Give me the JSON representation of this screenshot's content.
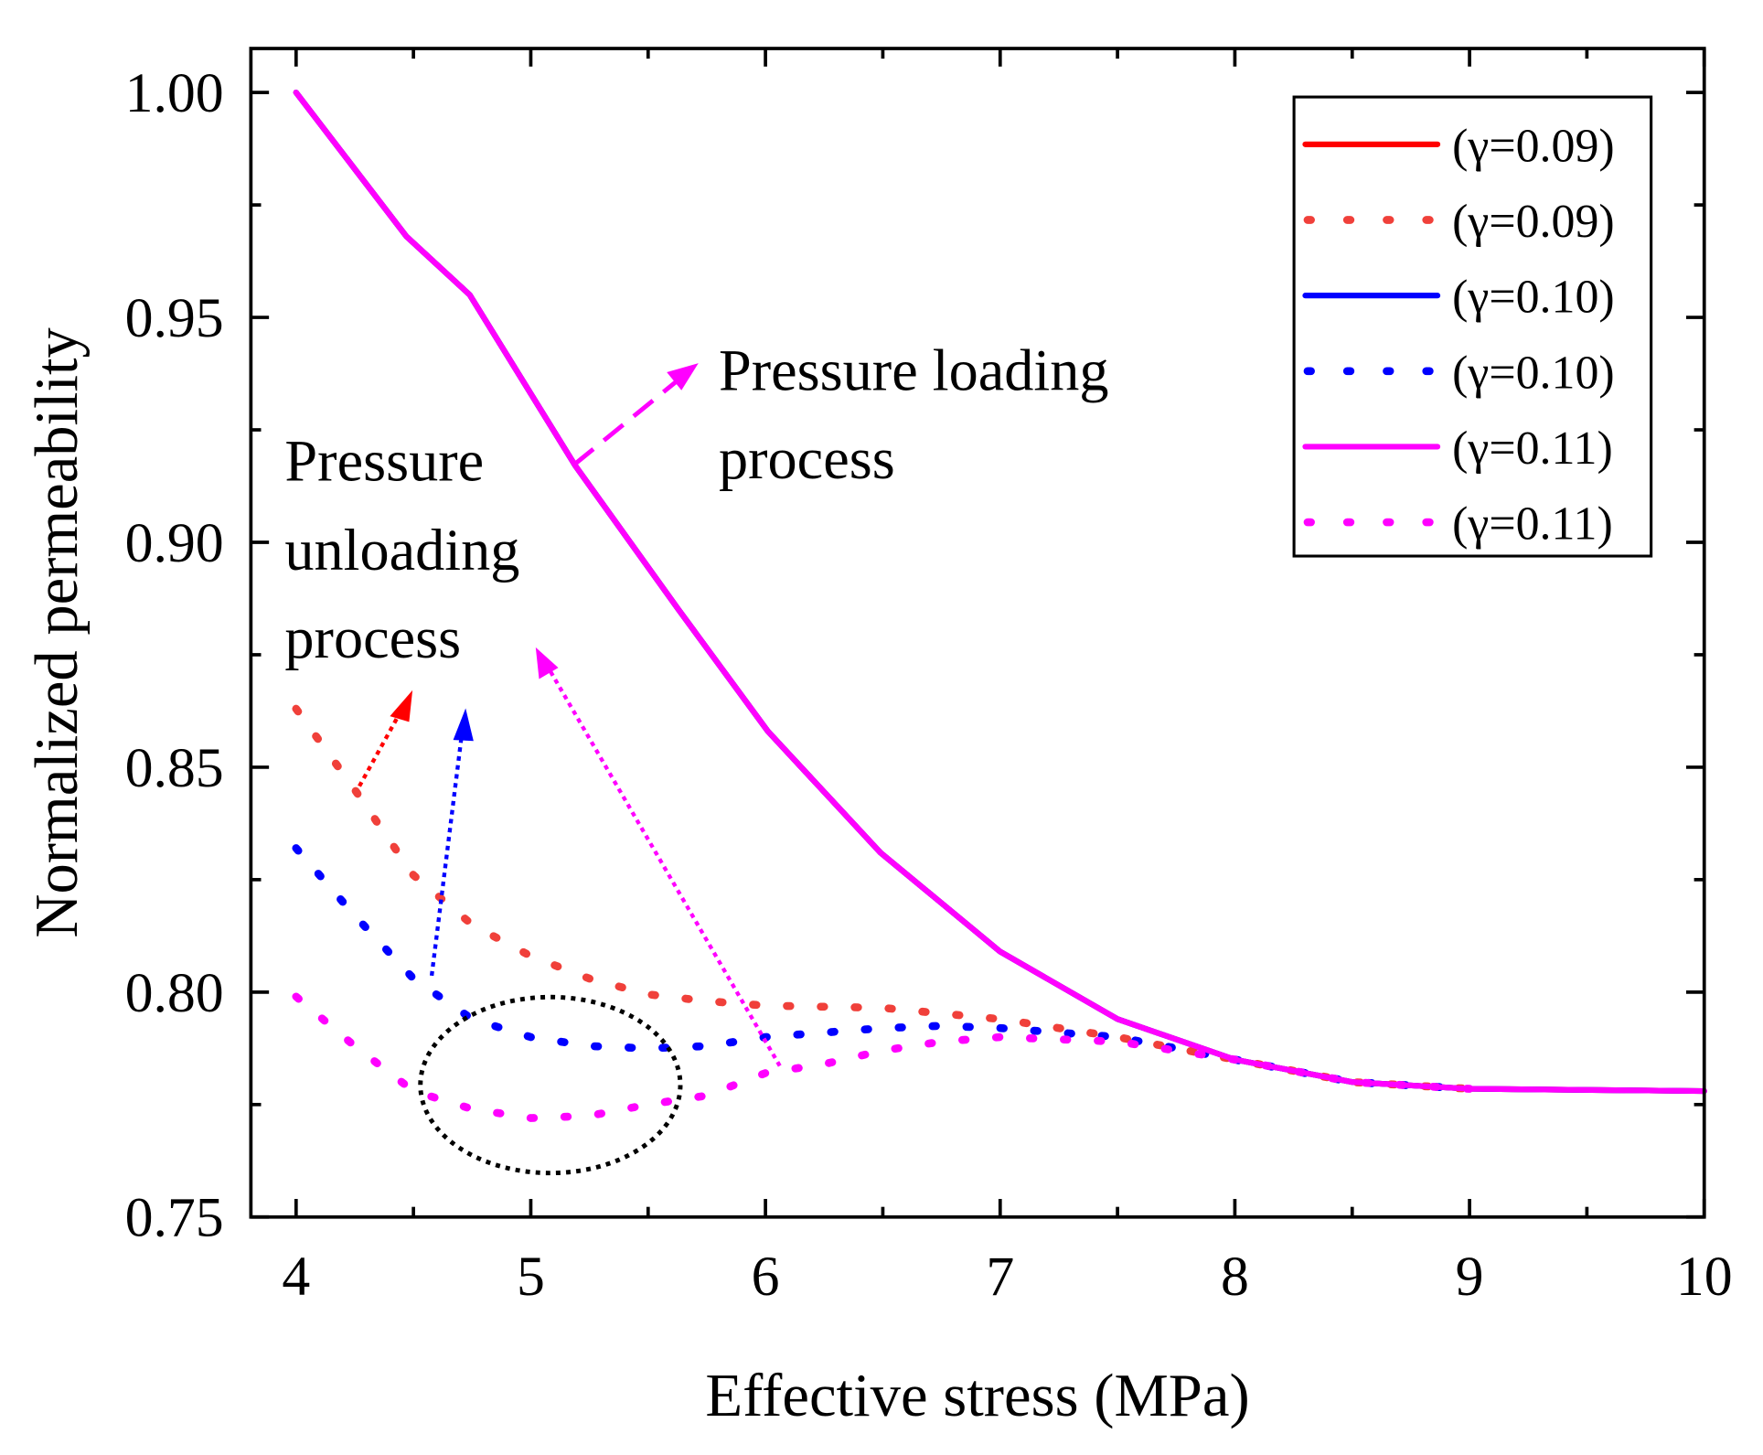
{
  "chart_data": {
    "type": "line",
    "title": "",
    "xlabel": "Effective stress (MPa)",
    "ylabel": "Normalized permeability",
    "xlim": [
      3.8,
      10
    ],
    "ylim": [
      0.75,
      1.01
    ],
    "xticks": [
      "4",
      "5",
      "6",
      "7",
      "8",
      "9",
      "10"
    ],
    "yticks": [
      "0.75",
      "0.80",
      "0.85",
      "0.90",
      "0.95",
      "1.00"
    ],
    "legend_position": "top-right",
    "series": [
      {
        "name": "(γ=0.09)",
        "style": "solid",
        "color": "#ff0000",
        "x": [
          4,
          4.47,
          4.74,
          5.19,
          5.63,
          6.01,
          6.49,
          7,
          7.5,
          8,
          8.5,
          9,
          10
        ],
        "y": [
          1.0,
          0.968,
          0.955,
          0.917,
          0.885,
          0.858,
          0.831,
          0.809,
          0.794,
          0.785,
          0.78,
          0.7785,
          0.778
        ]
      },
      {
        "name": "(γ=0.09)",
        "style": "dotted",
        "color": "#f0403a",
        "x": [
          4,
          4.25,
          4.5,
          4.75,
          5,
          5.25,
          5.5,
          5.75,
          6,
          6.5,
          7,
          7.5,
          8,
          8.5,
          9
        ],
        "y": [
          0.863,
          0.845,
          0.826,
          0.815,
          0.808,
          0.803,
          0.7995,
          0.798,
          0.797,
          0.7965,
          0.794,
          0.79,
          0.785,
          0.78,
          0.7785
        ]
      },
      {
        "name": "(γ=0.10)",
        "style": "solid",
        "color": "#0000ff",
        "x": [
          4,
          4.47,
          4.74,
          5.19,
          5.63,
          6.01,
          6.49,
          7,
          7.5,
          8,
          8.5,
          9,
          10
        ],
        "y": [
          1.0,
          0.968,
          0.955,
          0.917,
          0.885,
          0.858,
          0.831,
          0.809,
          0.794,
          0.785,
          0.78,
          0.7785,
          0.778
        ]
      },
      {
        "name": "(γ=0.10)",
        "style": "dotted",
        "color": "#0000ff",
        "x": [
          4,
          4.25,
          4.5,
          4.75,
          5,
          5.25,
          5.5,
          5.75,
          6,
          6.25,
          6.5,
          6.75,
          7,
          7.5,
          8,
          8.5,
          9
        ],
        "y": [
          0.832,
          0.817,
          0.803,
          0.794,
          0.79,
          0.788,
          0.7875,
          0.788,
          0.79,
          0.791,
          0.792,
          0.7925,
          0.792,
          0.79,
          0.785,
          0.78,
          0.7785
        ]
      },
      {
        "name": "(γ=0.11)",
        "style": "solid",
        "color": "#ff00ff",
        "x": [
          4,
          4.47,
          4.74,
          5.19,
          5.63,
          6.01,
          6.49,
          7,
          7.5,
          8,
          8.5,
          9,
          10
        ],
        "y": [
          1.0,
          0.968,
          0.955,
          0.917,
          0.885,
          0.858,
          0.831,
          0.809,
          0.794,
          0.785,
          0.78,
          0.7785,
          0.778
        ]
      },
      {
        "name": "(γ=0.11)",
        "style": "dotted",
        "color": "#ff00ff",
        "x": [
          4,
          4.25,
          4.5,
          4.75,
          5,
          5.25,
          5.5,
          5.75,
          6,
          6.25,
          6.5,
          6.75,
          7,
          7.5,
          8,
          8.5,
          9
        ],
        "y": [
          0.799,
          0.788,
          0.778,
          0.774,
          0.772,
          0.7725,
          0.775,
          0.777,
          0.782,
          0.784,
          0.787,
          0.789,
          0.79,
          0.789,
          0.785,
          0.78,
          0.7785
        ]
      }
    ],
    "annotations": {
      "loading_line1": "Pressure loading",
      "loading_line2": "process",
      "unloading_line1": "Pressure",
      "unloading_line2": "unloading",
      "unloading_line3": "process"
    }
  }
}
